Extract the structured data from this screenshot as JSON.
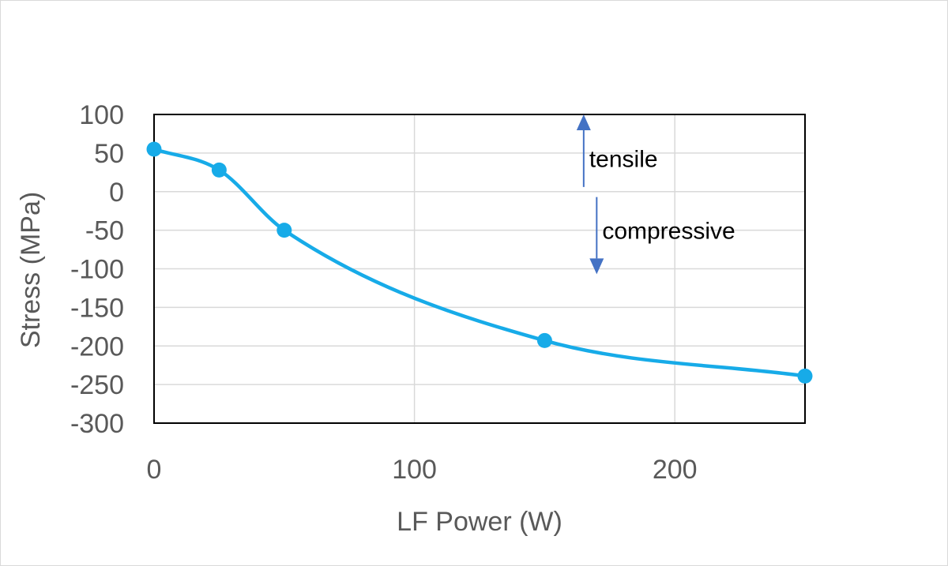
{
  "chart_data": {
    "type": "scatter",
    "xlabel": "LF Power (W)",
    "ylabel": "Stress (MPa)",
    "xlim": [
      0,
      250
    ],
    "ylim": [
      -300,
      100
    ],
    "xticks": [
      0,
      100,
      200
    ],
    "yticks": [
      100,
      50,
      0,
      -50,
      -100,
      -150,
      -200,
      -250,
      -300
    ],
    "xtick_labels": [
      "0",
      "100",
      "200"
    ],
    "ytick_labels": [
      "100",
      "50",
      "0",
      "-50",
      "-100",
      "-150",
      "-200",
      "-250",
      "-300"
    ],
    "grid": true,
    "smooth_line": true,
    "series": [
      {
        "x": [
          0,
          25,
          50,
          150,
          250
        ],
        "y": [
          55,
          28,
          -50,
          -193,
          -239
        ]
      }
    ],
    "annotations": [
      {
        "text": "tensile",
        "arrow": "up",
        "x": 165,
        "y_from": 6,
        "y_to": 100
      },
      {
        "text": "compressive",
        "arrow": "down",
        "x": 170,
        "y_from": -7,
        "y_to": -107
      }
    ],
    "colors": {
      "series": "#17ABE8",
      "arrow": "#4472C4",
      "grid": "#d9d9d9",
      "text": "#595959"
    }
  }
}
